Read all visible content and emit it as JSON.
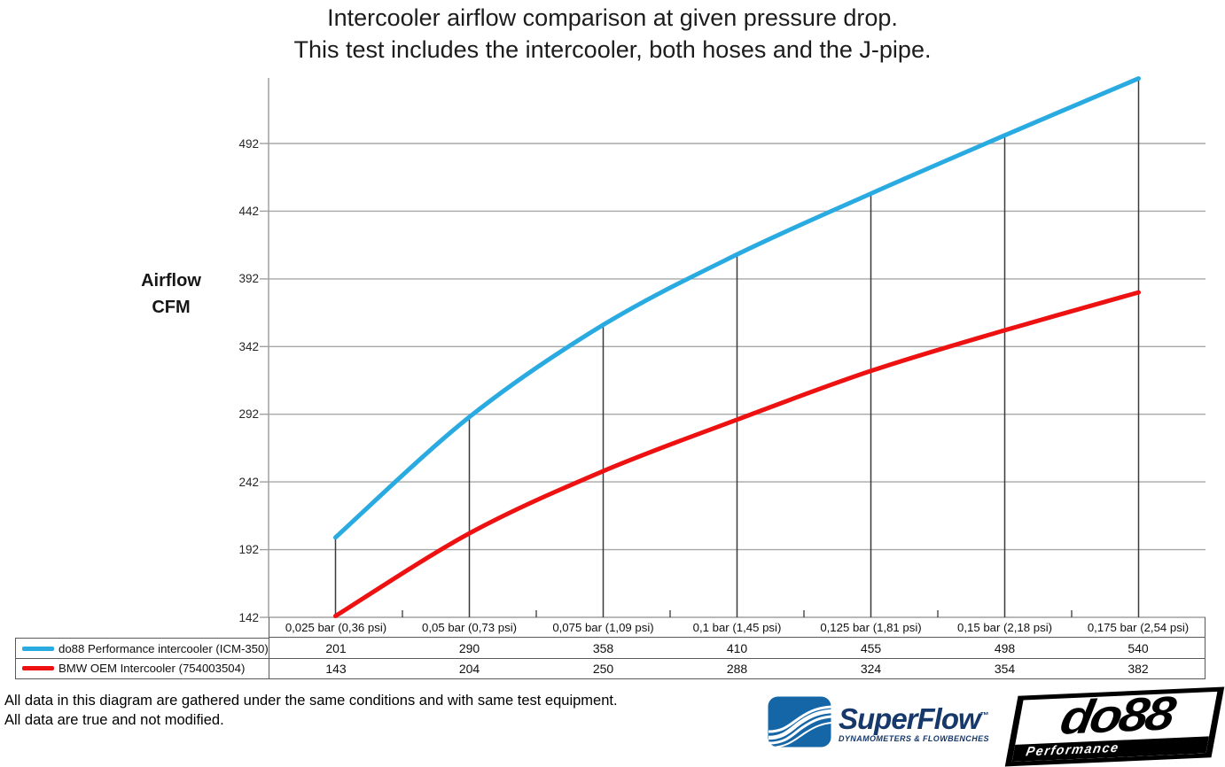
{
  "title": {
    "line1": "Intercooler airflow comparison at given pressure drop.",
    "line2": "This test includes the intercooler, both hoses and the J-pipe."
  },
  "chart_data": {
    "type": "line",
    "title": "Intercooler airflow comparison at given pressure drop. This test includes the intercooler, both hoses and the J-pipe.",
    "title_lines": [
      "Intercooler airflow comparison at given pressure drop.",
      "This test includes the intercooler, both hoses and the J-pipe."
    ],
    "categories": [
      "0,025 bar (0,36 psi)",
      "0,05 bar (0,73 psi)",
      "0,075 bar (1,09 psi)",
      "0,1 bar (1,45 psi)",
      "0,125 bar (1,81 psi)",
      "0,15 bar (2,18 psi)",
      "0,175 bar (2,54 psi)"
    ],
    "series": [
      {
        "name": "do88 Performance intercooler (ICM-350)",
        "color": "#29abe2",
        "values": [
          201,
          290,
          358,
          410,
          455,
          498,
          540
        ]
      },
      {
        "name": "BMW OEM Intercooler (754003504)",
        "color": "#ee1111",
        "values": [
          143,
          204,
          250,
          288,
          324,
          354,
          382
        ]
      }
    ],
    "xlabel": "",
    "ylabel": "Airflow CFM",
    "ylabel_lines": [
      "Airflow",
      "CFM"
    ],
    "yticks": [
      142,
      192,
      242,
      292,
      342,
      392,
      442,
      492
    ],
    "ylim": [
      142,
      541
    ],
    "grid": true,
    "legend_position": "table-left",
    "colors": {
      "gridline": "#a8a8a8",
      "axis": "#a0a0a0",
      "drop_line": "#3a3a3a",
      "table_border": "#595959"
    }
  },
  "footer": {
    "note_line1": "All data in this diagram are gathered under the same conditions and with same test equipment.",
    "note_line2": "All data are true and not modified."
  },
  "logos": {
    "superflow": {
      "brand": "SuperFlow",
      "trademark": "™",
      "tagline": "DYNAMOMETERS & FLOWBENCHES",
      "brand_color": "#16386b",
      "icon_color": "#1566a7"
    },
    "do88": {
      "brand": "do88",
      "tagline": "Performance"
    }
  }
}
